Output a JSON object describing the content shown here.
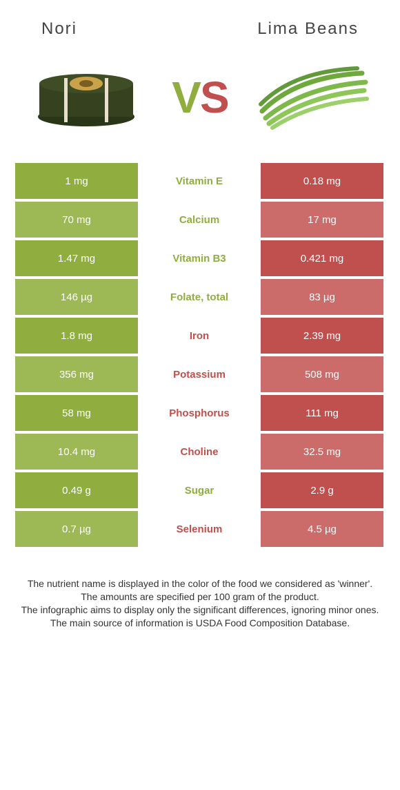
{
  "header": {
    "left_title": "Nori",
    "right_title": "Lima Beans"
  },
  "vs": {
    "v": "V",
    "s": "S"
  },
  "colors": {
    "nori_row_bg": "#8fae3f",
    "nori_row_alt_bg": "#9db956",
    "lima_row_bg": "#c0504d",
    "lima_row_alt_bg": "#cb6c6a",
    "mid_bg": "#ffffff",
    "nori_text": "#8fae3f",
    "lima_text": "#c0504d"
  },
  "rows": [
    {
      "left": "1 mg",
      "label": "Vitamin E",
      "right": "0.18 mg",
      "winner": "left"
    },
    {
      "left": "70 mg",
      "label": "Calcium",
      "right": "17 mg",
      "winner": "left"
    },
    {
      "left": "1.47 mg",
      "label": "Vitamin B3",
      "right": "0.421 mg",
      "winner": "left"
    },
    {
      "left": "146 µg",
      "label": "Folate, total",
      "right": "83 µg",
      "winner": "left"
    },
    {
      "left": "1.8 mg",
      "label": "Iron",
      "right": "2.39 mg",
      "winner": "right"
    },
    {
      "left": "356 mg",
      "label": "Potassium",
      "right": "508 mg",
      "winner": "right"
    },
    {
      "left": "58 mg",
      "label": "Phosphorus",
      "right": "111 mg",
      "winner": "right"
    },
    {
      "left": "10.4 mg",
      "label": "Choline",
      "right": "32.5 mg",
      "winner": "right"
    },
    {
      "left": "0.49 g",
      "label": "Sugar",
      "right": "2.9 g",
      "winner": "left"
    },
    {
      "left": "0.7 µg",
      "label": "Selenium",
      "right": "4.5 µg",
      "winner": "right"
    }
  ],
  "footer": {
    "line1": "The nutrient name is displayed in the color of the food we considered as 'winner'.",
    "line2": "The amounts are specified per 100 gram of the product.",
    "line3": "The infographic aims to display only the significant differences, ignoring minor ones.",
    "line4": "The main source of information is USDA Food Composition Database."
  }
}
